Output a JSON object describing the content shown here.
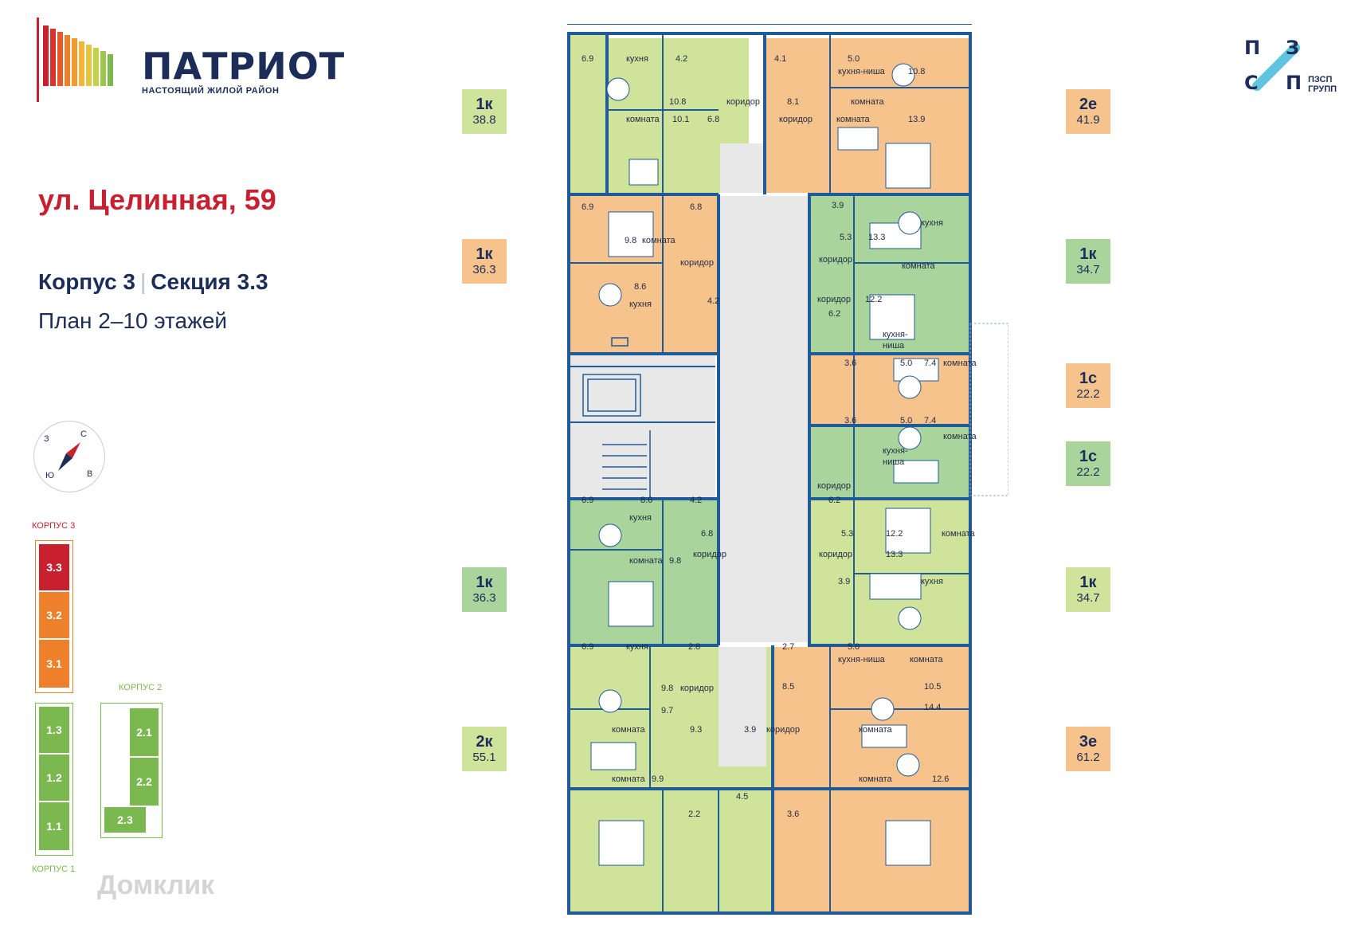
{
  "brand": {
    "name": "ПАТРИОТ",
    "tagline": "НАСТОЯЩИЙ ЖИЛОЙ РАЙОН"
  },
  "address": "ул. Целинная, 59",
  "building": {
    "korpus": "Корпус 3",
    "section": "Секция 3.3"
  },
  "plan_floors": "План 2–10 этажей",
  "developer": {
    "letters": [
      "П",
      "З",
      "С",
      "П"
    ],
    "name_line1": "ПЗСП",
    "name_line2": "ГРУПП"
  },
  "compass": {
    "n": "С",
    "e": "В",
    "s": "Ю",
    "w": "З"
  },
  "site_map": {
    "korpus3": "КОРПУС 3",
    "korpus2": "КОРПУС 2",
    "korpus1": "КОРПУС 1",
    "sections3": [
      "3.3",
      "3.2",
      "3.1"
    ],
    "sections2": [
      "2.1",
      "2.2",
      "2.3"
    ],
    "sections1": [
      "1.3",
      "1.2",
      "1.1"
    ]
  },
  "tags_left": [
    {
      "type": "1к",
      "area": "38.8"
    },
    {
      "type": "1к",
      "area": "36.3"
    },
    {
      "type": "1к",
      "area": "36.3"
    },
    {
      "type": "2к",
      "area": "55.1"
    }
  ],
  "tags_right": [
    {
      "type": "2е",
      "area": "41.9"
    },
    {
      "type": "1к",
      "area": "34.7"
    },
    {
      "type": "1с",
      "area": "22.2"
    },
    {
      "type": "1с",
      "area": "22.2"
    },
    {
      "type": "1к",
      "area": "34.7"
    },
    {
      "type": "3е",
      "area": "61.2"
    }
  ],
  "rooms": {
    "kitchen": "кухня",
    "room": "комната",
    "corridor": "коридор",
    "kitchen_niche": "кухня-ниша",
    "kitchen_niche_a": "кухня-",
    "kitchen_niche_b": "ниша"
  },
  "areas": {
    "a1_balcony": "6.9",
    "a1_kitchen": "10.8",
    "a1_room": "10.1",
    "a1_bath": "4.2",
    "a1_corr": "6.8",
    "a2_bath": "4.1",
    "a2_kn": "5.0",
    "a2_din": "10.8",
    "a2_corr": "8.1",
    "a2_room": "13.9",
    "a3_balcony": "6.9",
    "a3_room": "9.8",
    "a3_corr": "6.8",
    "a3_kitchen": "8.6",
    "a3_bath": "4.2",
    "a4_bath": "3.9",
    "a4_corr": "5.3",
    "a4_kitchen": "13.3",
    "a4_corr2": "6.2",
    "a4_room": "12.2",
    "a5_bath": "3.6",
    "a5_kn": "5.0",
    "a5_room": "7.4",
    "a6_bath": "3.6",
    "a6_kn": "5.0",
    "a6_room": "7.4",
    "a7_balcony": "6.9",
    "a7_kitchen": "8.6",
    "a7_bath": "4.2",
    "a7_corr": "6.8",
    "a7_room": "9.8",
    "a8_corr": "6.2",
    "a8_corr2": "5.3",
    "a8_room": "12.2",
    "a8_kitchen": "13.3",
    "a8_bath": "3.9",
    "a9_balcony": "6.9",
    "a9_bath": "2.8",
    "a9_kitchen": "9.8",
    "a9_room": "9.7",
    "a9_corr": "9.3",
    "a9_room2": "9.9",
    "a9_wc": "2.2",
    "a9_bath2": "4.5",
    "a10_bath": "2.7",
    "a10_kn": "5.0",
    "a10_corr": "8.5",
    "a10_room": "10.5",
    "a10_room2": "14.4",
    "a10_wc": "3.9",
    "a10_room3": "12.6",
    "a10_bath2": "3.6"
  },
  "watermark": "Домклик",
  "colors": {
    "wall": "#1f5a99",
    "orange": "#f7c38c",
    "green": "#cfe49a",
    "mint": "#a9d49c",
    "common": "#e8e8e8",
    "accent": "#c8202f"
  }
}
